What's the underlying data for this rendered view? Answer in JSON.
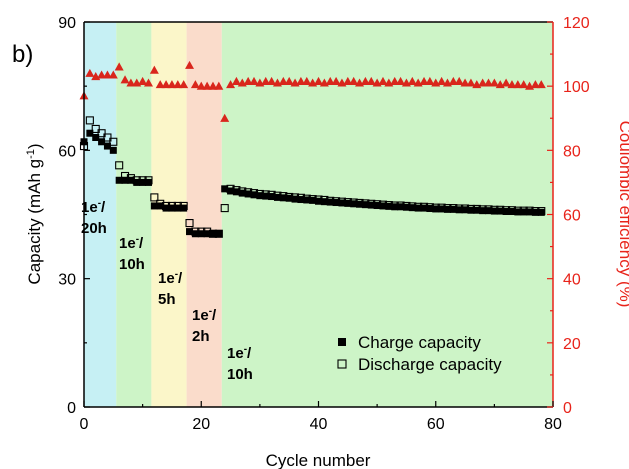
{
  "chart_data": {
    "type": "scatter",
    "panel_label": "b)",
    "xlabel": "Cycle number",
    "ylabel_left": "Capacity (mAh g",
    "ylabel_left_sup": "-1",
    "ylabel_left_end": ")",
    "ylabel_right": "Coulombic efficiency (%)",
    "xlim": [
      0,
      80
    ],
    "ylim_left": [
      0,
      90
    ],
    "ylim_right": [
      0,
      120
    ],
    "xticks": [
      0,
      20,
      40,
      60,
      80
    ],
    "yticks_left": [
      0,
      30,
      60,
      90
    ],
    "yticks_right": [
      0,
      20,
      40,
      60,
      80,
      100,
      120
    ],
    "regions": [
      {
        "start": -0.5,
        "end": 5.5,
        "color": "#c6f0f4",
        "label_lines": [
          "1e",
          "20h"
        ]
      },
      {
        "start": 5.5,
        "end": 11.5,
        "color": "#cdf4c7",
        "label_lines": [
          "1e",
          "10h"
        ]
      },
      {
        "start": 11.5,
        "end": 17.5,
        "color": "#fbf6c9",
        "label_lines": [
          "1e",
          "5h"
        ]
      },
      {
        "start": 17.5,
        "end": 23.5,
        "color": "#fadccb",
        "label_lines": [
          "1e",
          "2h"
        ]
      },
      {
        "start": 23.5,
        "end": 80,
        "color": "#cdf4c7",
        "label_lines": [
          "1e",
          "10h"
        ]
      }
    ],
    "region_label_sup": "-",
    "region_label_slash": "/",
    "series": [
      {
        "name": "Charge capacity",
        "axis": "left",
        "marker": "filled-square",
        "color": "#000000",
        "x": [
          0,
          1,
          2,
          3,
          4,
          5,
          6,
          7,
          8,
          9,
          10,
          11,
          12,
          13,
          14,
          15,
          16,
          17,
          18,
          19,
          20,
          21,
          22,
          23,
          24,
          25,
          26,
          27,
          28,
          29,
          30,
          31,
          32,
          33,
          34,
          35,
          36,
          37,
          38,
          39,
          40,
          41,
          42,
          43,
          44,
          45,
          46,
          47,
          48,
          49,
          50,
          51,
          52,
          53,
          54,
          55,
          56,
          57,
          58,
          59,
          60,
          61,
          62,
          63,
          64,
          65,
          66,
          67,
          68,
          69,
          70,
          71,
          72,
          73,
          74,
          75,
          76,
          77,
          78
        ],
        "y": [
          62,
          64,
          63,
          62,
          61,
          60,
          53,
          53,
          53,
          52.5,
          52.5,
          52.5,
          47,
          47,
          46.5,
          46.5,
          46.5,
          46.5,
          41,
          40.5,
          40.5,
          40.5,
          40.5,
          40.5,
          51,
          50.5,
          50.3,
          50,
          49.8,
          49.6,
          49.4,
          49.3,
          49.2,
          49,
          48.9,
          48.8,
          48.6,
          48.5,
          48.4,
          48.3,
          48.1,
          48,
          47.9,
          47.8,
          47.7,
          47.6,
          47.5,
          47.4,
          47.3,
          47.2,
          47.1,
          47,
          46.9,
          46.8,
          46.8,
          46.7,
          46.6,
          46.5,
          46.5,
          46.4,
          46.3,
          46.3,
          46.2,
          46.2,
          46.1,
          46.1,
          46,
          46,
          45.9,
          45.9,
          45.8,
          45.8,
          45.7,
          45.7,
          45.6,
          45.6,
          45.6,
          45.5,
          45.5
        ]
      },
      {
        "name": "Discharge capacity",
        "axis": "left",
        "marker": "open-square",
        "color": "#000000",
        "x": [
          0,
          1,
          2,
          3,
          4,
          5,
          6,
          7,
          8,
          9,
          10,
          11,
          12,
          13,
          14,
          15,
          16,
          17,
          18,
          19,
          20,
          21,
          22,
          23,
          24,
          25,
          26,
          27,
          28,
          29,
          30,
          31,
          32,
          33,
          34,
          35,
          36,
          37,
          38,
          39,
          40,
          41,
          42,
          43,
          44,
          45,
          46,
          47,
          48,
          49,
          50,
          51,
          52,
          53,
          54,
          55,
          56,
          57,
          58,
          59,
          60,
          61,
          62,
          63,
          64,
          65,
          66,
          67,
          68,
          69,
          70,
          71,
          72,
          73,
          74,
          75,
          76,
          77,
          78
        ],
        "y": [
          61,
          67,
          65,
          64,
          63,
          62,
          56.5,
          54,
          53.5,
          53,
          53,
          53,
          49,
          47.5,
          47,
          47,
          47,
          47,
          43,
          41,
          41,
          41,
          40.5,
          40.5,
          46.5,
          51,
          50.7,
          50.4,
          50.2,
          50,
          49.8,
          49.7,
          49.6,
          49.4,
          49.3,
          49.1,
          49,
          48.9,
          48.7,
          48.6,
          48.5,
          48.4,
          48.2,
          48.1,
          48,
          47.9,
          47.8,
          47.7,
          47.6,
          47.5,
          47.4,
          47.3,
          47.2,
          47.1,
          47.1,
          47,
          46.9,
          46.8,
          46.8,
          46.7,
          46.6,
          46.6,
          46.5,
          46.5,
          46.4,
          46.4,
          46.3,
          46.3,
          46.2,
          46.2,
          46.1,
          46.1,
          46,
          46,
          45.9,
          45.9,
          45.9,
          45.8,
          45.8
        ]
      },
      {
        "name": "",
        "axis": "right",
        "marker": "filled-triangle",
        "color": "#d9261c",
        "x": [
          0,
          1,
          2,
          3,
          4,
          5,
          6,
          7,
          8,
          9,
          10,
          11,
          12,
          13,
          14,
          15,
          16,
          17,
          18,
          19,
          20,
          21,
          22,
          23,
          24,
          25,
          26,
          27,
          28,
          29,
          30,
          31,
          32,
          33,
          34,
          35,
          36,
          37,
          38,
          39,
          40,
          41,
          42,
          43,
          44,
          45,
          46,
          47,
          48,
          49,
          50,
          51,
          52,
          53,
          54,
          55,
          56,
          57,
          58,
          59,
          60,
          61,
          62,
          63,
          64,
          65,
          66,
          67,
          68,
          69,
          70,
          71,
          72,
          73,
          74,
          75,
          76,
          77,
          78
        ],
        "y": [
          97,
          104,
          103,
          103.5,
          103.5,
          103.5,
          106,
          102,
          101,
          101,
          101.5,
          101,
          105,
          100.5,
          100.5,
          100.5,
          100.5,
          100.5,
          106.5,
          100.5,
          100,
          100,
          100,
          100,
          90,
          100.5,
          101.5,
          101,
          101.5,
          101.5,
          101,
          101.5,
          101.5,
          101,
          101.5,
          101.5,
          101,
          101.5,
          101.5,
          101,
          101.5,
          101,
          101.5,
          101.5,
          101,
          101.5,
          101.5,
          101,
          101.5,
          101.5,
          101,
          101.5,
          101,
          101.5,
          101.5,
          101,
          101.5,
          101,
          101.5,
          101.5,
          101,
          101.5,
          101,
          101.5,
          101.5,
          101,
          101,
          100.5,
          101,
          101,
          101,
          100.5,
          101,
          100.5,
          100.5,
          100.5,
          100,
          100.5,
          100.5
        ]
      }
    ],
    "legend": {
      "placement": "lower-right",
      "entries": [
        {
          "label": "Charge capacity",
          "marker": "filled-square"
        },
        {
          "label": "Discharge capacity",
          "marker": "open-square"
        }
      ]
    },
    "grid": false,
    "colors": {
      "right_axis": "#e8231a",
      "triangle": "#d9261c"
    }
  }
}
